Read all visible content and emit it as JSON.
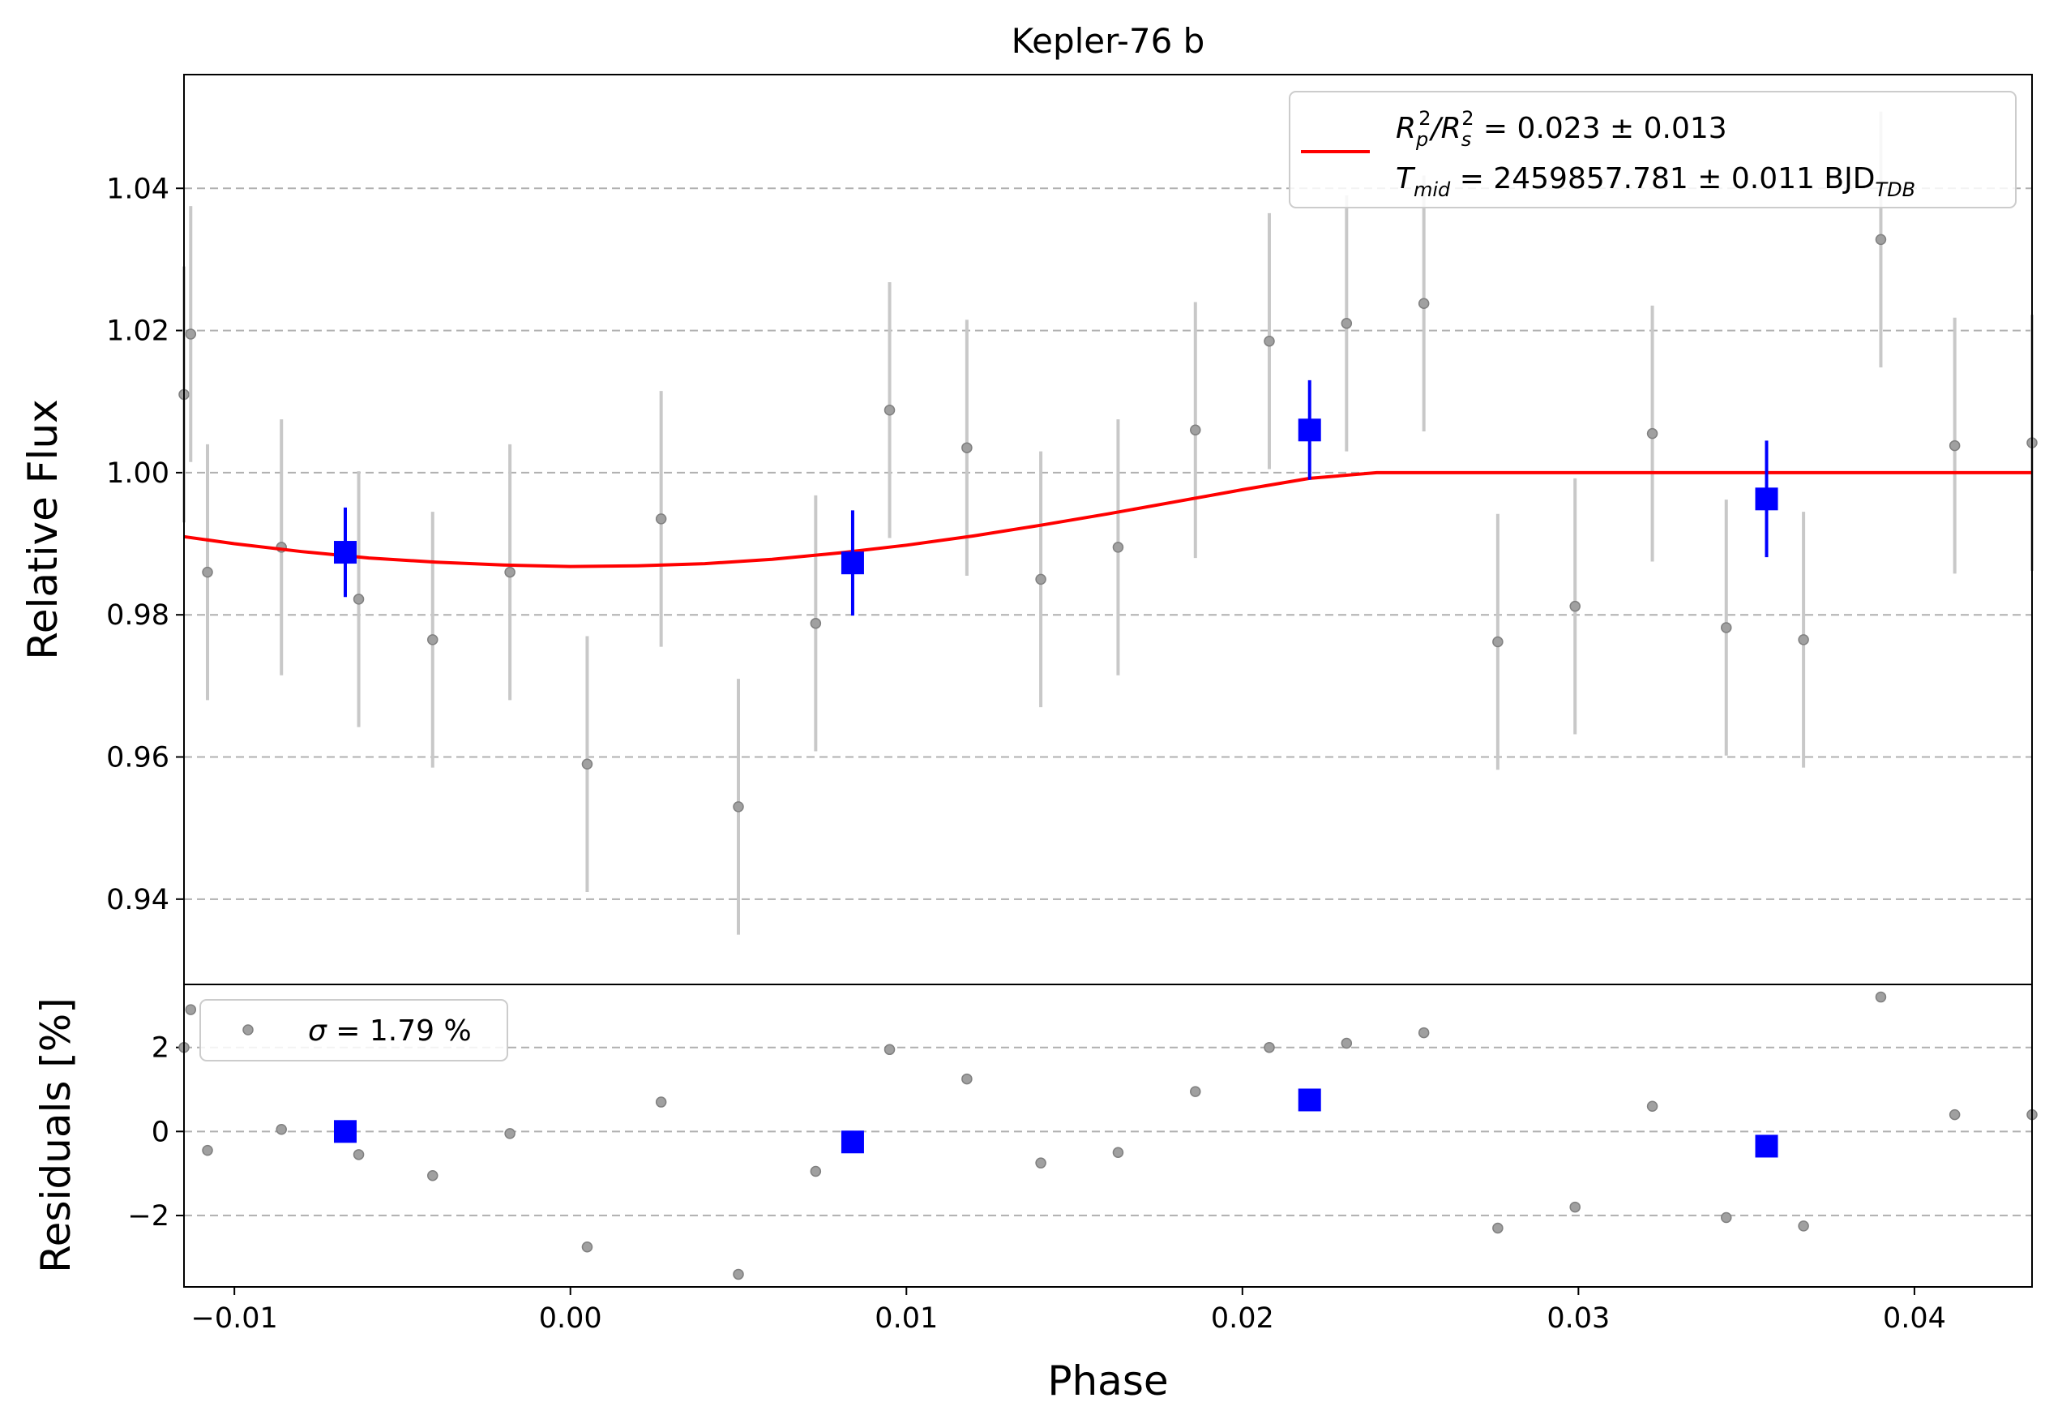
{
  "chart_data": {
    "type": "scatter",
    "title": "Kepler-76 b",
    "colors": {
      "raw": "#a0a0a0",
      "raw_errbar": "#c8c8c8",
      "binned": "#0000ff",
      "model": "#ff0000",
      "grid": "#b0b0b0"
    },
    "top_panel": {
      "ylabel": "Relative Flux",
      "ylim": [
        0.928,
        1.056
      ],
      "yticks": [
        0.94,
        0.96,
        0.98,
        1.0,
        1.02,
        1.04
      ],
      "ytick_labels": [
        "0.94",
        "0.96",
        "0.98",
        "1.00",
        "1.02",
        "1.04"
      ],
      "grid": "horizontal dashed",
      "legend": {
        "location": "top-right",
        "line1_main": "R",
        "line1_sub_p": "p",
        "line1_sup_p": "2",
        "line1_slash": "/R",
        "line1_sub_s": "s",
        "line1_sup_s": "2",
        "line1_value": " = 0.023 ± 0.013",
        "line2_main": "T",
        "line2_sub": "mid",
        "line2_value": " = 2459857.781 ± 0.011 BJD",
        "line2_unit_sub": "TDB"
      },
      "raw_points": [
        {
          "x": -0.0115,
          "y": 1.011,
          "err": 0.018
        },
        {
          "x": -0.0113,
          "y": 1.0195,
          "err": 0.018
        },
        {
          "x": -0.0108,
          "y": 0.986,
          "err": 0.018
        },
        {
          "x": -0.0086,
          "y": 0.9895,
          "err": 0.018
        },
        {
          "x": -0.0063,
          "y": 0.9822,
          "err": 0.018
        },
        {
          "x": -0.0041,
          "y": 0.9765,
          "err": 0.018
        },
        {
          "x": -0.0018,
          "y": 0.986,
          "err": 0.018
        },
        {
          "x": 0.0005,
          "y": 0.959,
          "err": 0.018
        },
        {
          "x": 0.0027,
          "y": 0.9935,
          "err": 0.018
        },
        {
          "x": 0.005,
          "y": 0.953,
          "err": 0.018
        },
        {
          "x": 0.0073,
          "y": 0.9788,
          "err": 0.018
        },
        {
          "x": 0.0095,
          "y": 1.0088,
          "err": 0.018
        },
        {
          "x": 0.0118,
          "y": 1.0035,
          "err": 0.018
        },
        {
          "x": 0.014,
          "y": 0.985,
          "err": 0.018
        },
        {
          "x": 0.0163,
          "y": 0.9895,
          "err": 0.018
        },
        {
          "x": 0.0186,
          "y": 1.006,
          "err": 0.018
        },
        {
          "x": 0.0208,
          "y": 1.0185,
          "err": 0.018
        },
        {
          "x": 0.0231,
          "y": 1.021,
          "err": 0.018
        },
        {
          "x": 0.0254,
          "y": 1.0238,
          "err": 0.018
        },
        {
          "x": 0.0276,
          "y": 0.9762,
          "err": 0.018
        },
        {
          "x": 0.0299,
          "y": 0.9812,
          "err": 0.018
        },
        {
          "x": 0.0322,
          "y": 1.0055,
          "err": 0.018
        },
        {
          "x": 0.0344,
          "y": 0.9782,
          "err": 0.018
        },
        {
          "x": 0.0367,
          "y": 0.9765,
          "err": 0.018
        },
        {
          "x": 0.039,
          "y": 1.0328,
          "err": 0.018
        },
        {
          "x": 0.0412,
          "y": 1.0038,
          "err": 0.018
        },
        {
          "x": 0.0435,
          "y": 1.0042,
          "err": 0.018
        }
      ],
      "binned_points": [
        {
          "x": -0.0067,
          "y": 0.9888,
          "err": 0.0063
        },
        {
          "x": 0.0084,
          "y": 0.9873,
          "err": 0.0074
        },
        {
          "x": 0.022,
          "y": 1.006,
          "err": 0.007
        },
        {
          "x": 0.0356,
          "y": 0.9963,
          "err": 0.0082
        }
      ],
      "model_curve": {
        "x": [
          -0.0115,
          -0.01,
          -0.008,
          -0.006,
          -0.004,
          -0.002,
          0.0,
          0.002,
          0.004,
          0.006,
          0.008,
          0.01,
          0.012,
          0.014,
          0.016,
          0.018,
          0.02,
          0.022,
          0.024,
          0.026,
          0.03,
          0.035,
          0.04,
          0.0435
        ],
        "y": [
          0.991,
          0.99,
          0.9889,
          0.988,
          0.9874,
          0.987,
          0.9868,
          0.9869,
          0.9872,
          0.9878,
          0.9887,
          0.9898,
          0.9911,
          0.9926,
          0.9942,
          0.9959,
          0.9976,
          0.9992,
          1.0,
          1.0,
          1.0,
          1.0,
          1.0,
          1.0
        ]
      }
    },
    "bottom_panel": {
      "ylabel": "Residuals [%]",
      "ylim": [
        -3.7,
        3.5
      ],
      "yticks": [
        -2,
        0,
        2
      ],
      "ytick_labels": [
        "−2",
        "0",
        "2"
      ],
      "grid": "horizontal dashed",
      "legend": {
        "location": "top-left",
        "sigma_symbol": "σ",
        "text": " = 1.79 %"
      },
      "raw_points": [
        {
          "x": -0.0115,
          "y": 2.0
        },
        {
          "x": -0.0113,
          "y": 2.9
        },
        {
          "x": -0.0108,
          "y": -0.45
        },
        {
          "x": -0.0086,
          "y": 0.05
        },
        {
          "x": -0.0063,
          "y": -0.55
        },
        {
          "x": -0.0041,
          "y": -1.05
        },
        {
          "x": -0.0018,
          "y": -0.05
        },
        {
          "x": 0.0005,
          "y": -2.75
        },
        {
          "x": 0.0027,
          "y": 0.7
        },
        {
          "x": 0.005,
          "y": -3.4
        },
        {
          "x": 0.0073,
          "y": -0.95
        },
        {
          "x": 0.0095,
          "y": 1.95
        },
        {
          "x": 0.0118,
          "y": 1.25
        },
        {
          "x": 0.014,
          "y": -0.75
        },
        {
          "x": 0.0163,
          "y": -0.5
        },
        {
          "x": 0.0186,
          "y": 0.95
        },
        {
          "x": 0.0208,
          "y": 2.0
        },
        {
          "x": 0.0231,
          "y": 2.1
        },
        {
          "x": 0.0254,
          "y": 2.35
        },
        {
          "x": 0.0276,
          "y": -2.3
        },
        {
          "x": 0.0299,
          "y": -1.8
        },
        {
          "x": 0.0322,
          "y": 0.6
        },
        {
          "x": 0.0344,
          "y": -2.05
        },
        {
          "x": 0.0367,
          "y": -2.25
        },
        {
          "x": 0.039,
          "y": 3.2
        },
        {
          "x": 0.0412,
          "y": 0.4
        },
        {
          "x": 0.0435,
          "y": 0.4
        }
      ],
      "binned_points": [
        {
          "x": -0.0067,
          "y": 0.0
        },
        {
          "x": 0.0084,
          "y": -0.25
        },
        {
          "x": 0.022,
          "y": 0.75
        },
        {
          "x": 0.0356,
          "y": -0.35
        }
      ]
    },
    "xaxis": {
      "xlabel": "Phase",
      "xlim": [
        -0.0115,
        0.0435
      ],
      "xticks": [
        -0.01,
        0.0,
        0.01,
        0.02,
        0.03,
        0.04
      ],
      "xtick_labels": [
        "−0.01",
        "0.00",
        "0.01",
        "0.02",
        "0.03",
        "0.04"
      ]
    }
  }
}
